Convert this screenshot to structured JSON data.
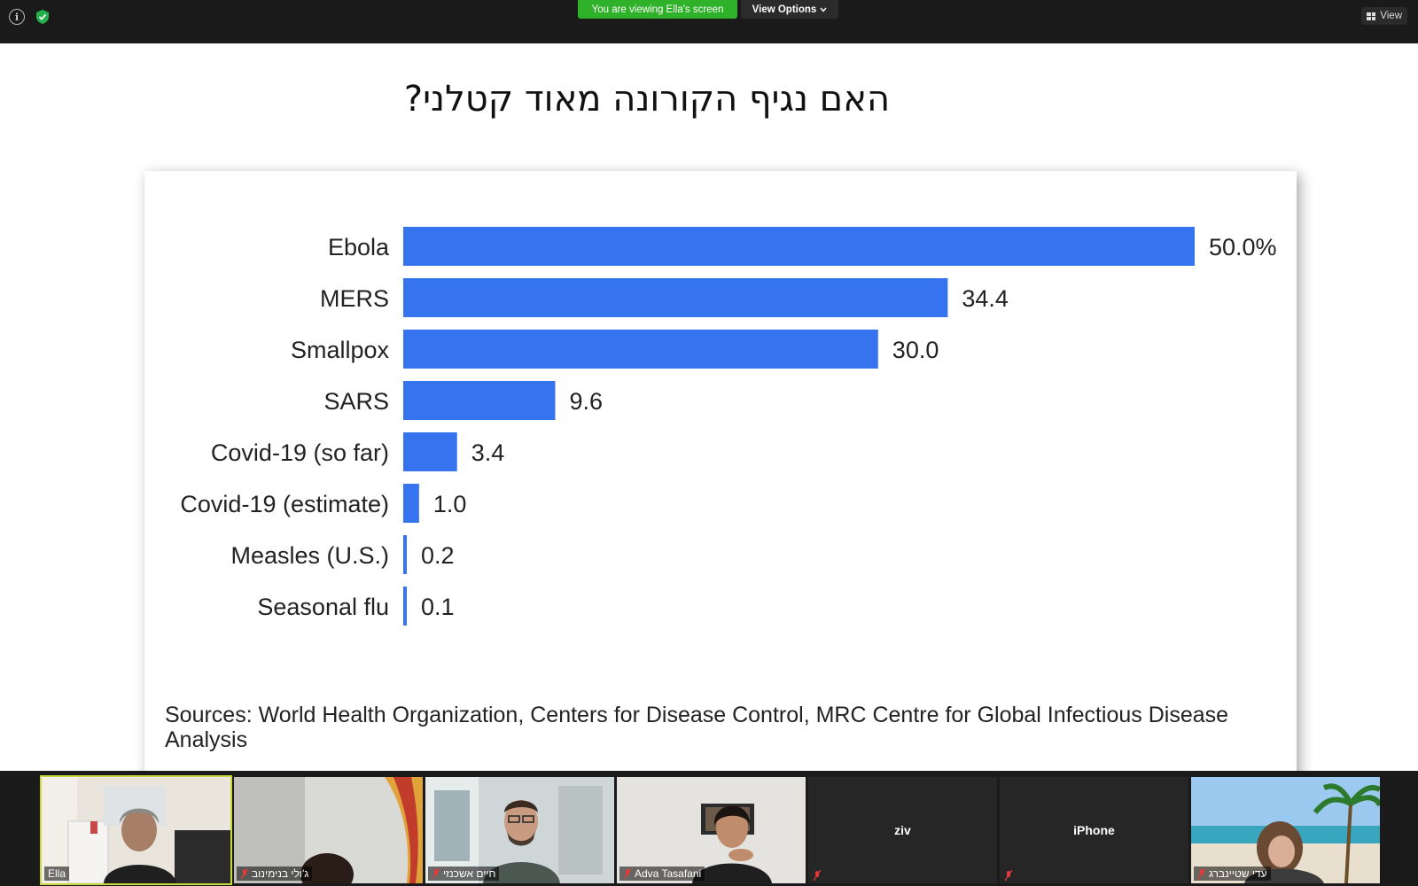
{
  "toolbar": {
    "viewing_banner": "You are viewing Ella's screen",
    "view_options_label": "View Options",
    "view_button_label": "View",
    "icons": [
      "info-icon",
      "shield-check-icon",
      "chevron-down-icon",
      "grid-icon"
    ],
    "accent_green": "#2fb12a"
  },
  "slide": {
    "title": "האם נגיף הקורונה מאוד קטלני?",
    "sources": "Sources: World Health Organization, Centers for Disease Control, MRC Centre for Global Infectious Disease Analysis"
  },
  "chart_data": {
    "type": "bar",
    "orientation": "horizontal",
    "categories": [
      "Ebola",
      "MERS",
      "Smallpox",
      "SARS",
      "Covid-19 (so far)",
      "Covid-19 (estimate)",
      "Measles (U.S.)",
      "Seasonal flu"
    ],
    "values": [
      50.0,
      34.4,
      30.0,
      9.6,
      3.4,
      1.0,
      0.2,
      0.1
    ],
    "value_labels": [
      "50.0%",
      "34.4",
      "30.0",
      "9.6",
      "3.4",
      "1.0",
      "0.2",
      "0.1"
    ],
    "bar_color": "#3574ee",
    "xlim": [
      0,
      50
    ],
    "grid": false,
    "legend": "none"
  },
  "participants": [
    {
      "name": "Ella",
      "video": true,
      "muted": false,
      "active": true
    },
    {
      "name": "ג'ולי בנימינוב",
      "video": true,
      "muted": true,
      "active": false
    },
    {
      "name": "חיים אשכנזי",
      "video": true,
      "muted": true,
      "active": false
    },
    {
      "name": "Adva Tasafani",
      "video": true,
      "muted": true,
      "active": false
    },
    {
      "name": "ziv",
      "video": false,
      "muted": true,
      "active": false
    },
    {
      "name": "iPhone",
      "video": false,
      "muted": true,
      "active": false
    },
    {
      "name": "עדי שטיינברג",
      "video": true,
      "muted": true,
      "active": false
    }
  ]
}
